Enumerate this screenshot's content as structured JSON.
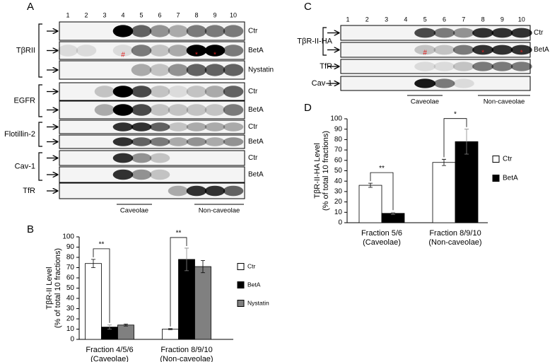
{
  "panel_a": {
    "label": "A",
    "lanes": [
      1,
      2,
      3,
      4,
      5,
      6,
      7,
      8,
      9,
      10
    ],
    "groups": [
      {
        "name": "TβRII",
        "rows": [
          "Ctr",
          "BetA",
          "Nystatin"
        ]
      },
      {
        "name": "EGFR",
        "rows": [
          "Ctr",
          "BetA"
        ]
      },
      {
        "name": "Flotillin-2",
        "rows": [
          "Ctr",
          "BetA"
        ]
      },
      {
        "name": "Cav-1",
        "rows": [
          "Ctr",
          "BetA"
        ]
      },
      {
        "name": "TfR",
        "rows": []
      }
    ],
    "regions": [
      "Caveolae",
      "Non-caveolae"
    ],
    "markers": [
      "#",
      "*",
      "*"
    ]
  },
  "panel_c": {
    "label": "C",
    "lanes": [
      1,
      2,
      3,
      4,
      5,
      6,
      7,
      8,
      9,
      10
    ],
    "groups": [
      {
        "name": "TβR-II-HA",
        "rows": [
          "Ctr",
          "BetA"
        ]
      },
      {
        "name": "TfR",
        "rows": []
      },
      {
        "name": "Cav-1",
        "rows": []
      }
    ],
    "regions": [
      "Caveolae",
      "Non-caveolae"
    ],
    "markers": [
      "#",
      "*",
      "*"
    ]
  },
  "chart_data": [
    {
      "type": "bar",
      "panel_label": "B",
      "ylabel": "TβR-II Level",
      "ylabel2": "(% of total 10 fractions)",
      "categories": [
        "Fraction 4/5/6",
        "Fraction 8/9/10"
      ],
      "category_sublabels": [
        "(Caveolae)",
        "(Non-caveolae)"
      ],
      "series": [
        {
          "name": "Ctr",
          "color": "#ffffff",
          "values": [
            74,
            10
          ],
          "errors": [
            4,
            0.5
          ]
        },
        {
          "name": "BetA",
          "color": "#000000",
          "values": [
            12,
            78
          ],
          "errors": [
            2,
            11
          ]
        },
        {
          "name": "Nystatin",
          "color": "#808080",
          "values": [
            14,
            71
          ],
          "errors": [
            1,
            6
          ]
        }
      ],
      "annotations": [
        "**",
        "**"
      ],
      "ylim": [
        0,
        100
      ],
      "yticks": [
        0,
        10,
        20,
        30,
        40,
        50,
        60,
        70,
        80,
        90,
        100
      ]
    },
    {
      "type": "bar",
      "panel_label": "D",
      "ylabel": "TβR-II-HA Level",
      "ylabel2": "(% of total 10 fractions)",
      "categories": [
        "Fraction 5/6",
        "Fraction 8/9/10"
      ],
      "category_sublabels": [
        "(Caveolae)",
        "(Non-caveolae)"
      ],
      "series": [
        {
          "name": "Ctr",
          "color": "#ffffff",
          "values": [
            36,
            58
          ],
          "errors": [
            2,
            3
          ]
        },
        {
          "name": "BetA",
          "color": "#000000",
          "values": [
            9,
            78
          ],
          "errors": [
            1,
            12
          ]
        }
      ],
      "annotations": [
        "**",
        "*"
      ],
      "ylim": [
        0,
        100
      ],
      "yticks": [
        0,
        10,
        20,
        30,
        40,
        50,
        60,
        70,
        80,
        90,
        100
      ]
    }
  ]
}
